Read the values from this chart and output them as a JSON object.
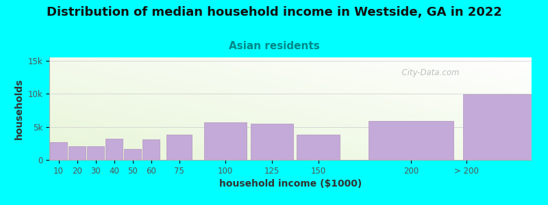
{
  "title": "Distribution of median household income in Westside, GA in 2022",
  "subtitle": "Asian residents",
  "xlabel": "household income ($1000)",
  "ylabel": "households",
  "background_color": "#00ffff",
  "bar_color": "#c4aad8",
  "bar_edge_color": "#b090c0",
  "categories": [
    "10",
    "20",
    "30",
    "40",
    "50",
    "60",
    "75",
    "100",
    "125",
    "150",
    "200",
    "> 200"
  ],
  "left_edges": [
    5,
    15,
    25,
    35,
    45,
    55,
    67.5,
    87.5,
    112.5,
    137.5,
    175,
    225
  ],
  "widths": [
    10,
    10,
    10,
    10,
    10,
    10,
    15,
    25,
    25,
    25,
    50,
    75
  ],
  "values": [
    2700,
    2100,
    2100,
    3200,
    1700,
    3100,
    3800,
    5700,
    5500,
    3800,
    5900,
    9900
  ],
  "xtick_positions": [
    10,
    20,
    30,
    40,
    50,
    60,
    75,
    100,
    125,
    150,
    200,
    230
  ],
  "xtick_labels": [
    "10",
    "20",
    "30",
    "40",
    "50",
    "60",
    "75",
    "100",
    "125",
    "150",
    "200",
    "> 200"
  ],
  "yticks": [
    0,
    5000,
    10000,
    15000
  ],
  "ytick_labels": [
    "0",
    "5k",
    "10k",
    "15k"
  ],
  "ylim": [
    0,
    15500
  ],
  "xlim": [
    5,
    265
  ],
  "watermark": "  City-Data.com",
  "title_fontsize": 13,
  "subtitle_fontsize": 11,
  "axis_label_fontsize": 10,
  "tick_fontsize": 8.5
}
